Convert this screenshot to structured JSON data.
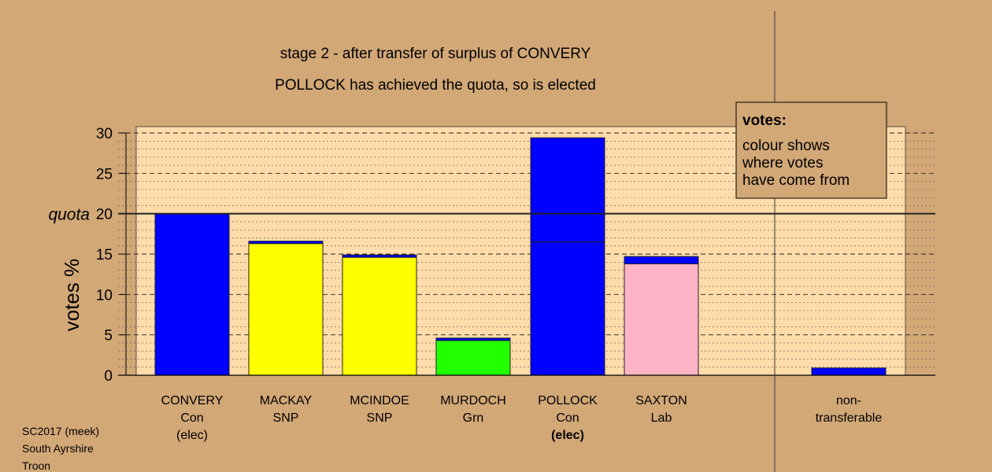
{
  "chart_data": {
    "type": "bar",
    "title": "stage 2 - after transfer of surplus of CONVERY",
    "subtitle": "POLLOCK has achieved the quota, so is elected",
    "ylabel": "votes %",
    "ylim": [
      0,
      30
    ],
    "yticks": [
      0,
      5,
      10,
      15,
      20,
      25,
      30
    ],
    "grid": true,
    "quota": {
      "label": "quota",
      "value": 20
    },
    "categories": [
      {
        "name": "CONVERY",
        "party": "Con",
        "status": "(elec)",
        "status_bold": false
      },
      {
        "name": "MACKAY",
        "party": "SNP",
        "status": "",
        "status_bold": false
      },
      {
        "name": "MCINDOE",
        "party": "SNP",
        "status": "",
        "status_bold": false
      },
      {
        "name": "MURDOCH",
        "party": "Grn",
        "status": "",
        "status_bold": false
      },
      {
        "name": "POLLOCK",
        "party": "Con",
        "status": "(elec)",
        "status_bold": true
      },
      {
        "name": "SAXTON",
        "party": "Lab",
        "status": "",
        "status_bold": false
      }
    ],
    "segments": [
      [
        {
          "source": "Con",
          "value": 20.0
        }
      ],
      [
        {
          "source": "SNP",
          "value": 16.3
        },
        {
          "source": "Con",
          "value": 0.3
        }
      ],
      [
        {
          "source": "SNP",
          "value": 14.6
        },
        {
          "source": "Con",
          "value": 0.3
        }
      ],
      [
        {
          "source": "Grn",
          "value": 4.3
        },
        {
          "source": "Con",
          "value": 0.3
        }
      ],
      [
        {
          "source": "Con",
          "value": 16.5
        },
        {
          "source": "Con",
          "value": 12.9
        }
      ],
      [
        {
          "source": "Lab",
          "value": 13.8
        },
        {
          "source": "Con",
          "value": 0.9
        }
      ]
    ],
    "nontransferable": {
      "label_line1": "non-",
      "label_line2": "transferable",
      "value": 0.9
    },
    "colors": {
      "Con": "#0000ff",
      "SNP": "#ffff00",
      "Grn": "#22ff00",
      "Lab": "#ffb3c6",
      "plot_bg": "#ffdcaa",
      "page_bg": "#d2a877"
    },
    "legend": {
      "position": "top-right",
      "title": "votes:",
      "lines": [
        "colour shows",
        "where votes",
        "have come from"
      ]
    }
  },
  "footer": {
    "line1": "SC2017 (meek)",
    "line2": "South Ayrshire",
    "line3": "Troon"
  }
}
